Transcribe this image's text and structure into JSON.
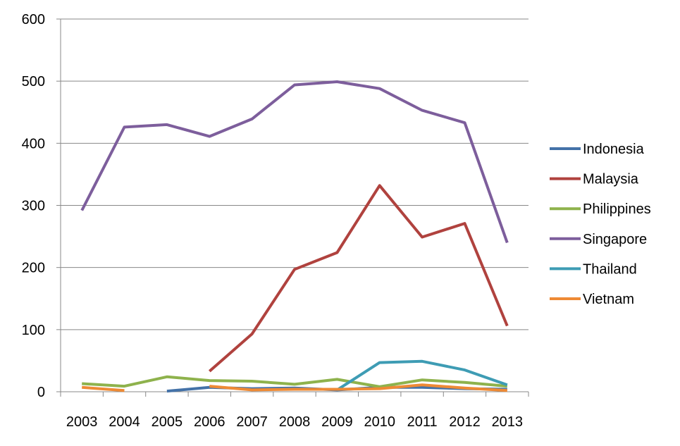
{
  "chart_data": {
    "type": "line",
    "title": "",
    "xlabel": "",
    "ylabel": "",
    "categories": [
      "2003",
      "2004",
      "2005",
      "2006",
      "2007",
      "2008",
      "2009",
      "2010",
      "2011",
      "2012",
      "2013"
    ],
    "ylim": [
      0,
      600
    ],
    "yticks": [
      "0",
      "100",
      "200",
      "300",
      "400",
      "500",
      "600"
    ],
    "grid": "horizontal",
    "legend_position": "right",
    "series": [
      {
        "name": "Indonesia",
        "color": "#4472a8",
        "values": [
          null,
          null,
          1,
          7,
          5,
          6,
          3,
          7,
          7,
          5,
          4
        ]
      },
      {
        "name": "Malaysia",
        "color": "#b0423e",
        "values": [
          null,
          null,
          null,
          33,
          93,
          197,
          224,
          332,
          249,
          271,
          106
        ]
      },
      {
        "name": "Philippines",
        "color": "#8eb24c",
        "values": [
          13,
          9,
          24,
          18,
          17,
          12,
          20,
          8,
          19,
          15,
          9
        ]
      },
      {
        "name": "Singapore",
        "color": "#7d5e9c",
        "values": [
          292,
          426,
          430,
          411,
          439,
          494,
          499,
          488,
          453,
          433,
          240
        ]
      },
      {
        "name": "Thailand",
        "color": "#3e9cb4",
        "values": [
          null,
          null,
          null,
          null,
          null,
          null,
          3,
          47,
          49,
          35,
          11
        ]
      },
      {
        "name": "Vietnam",
        "color": "#ee8a35",
        "values": [
          7,
          2,
          null,
          9,
          3,
          4,
          4,
          5,
          11,
          6,
          2
        ]
      }
    ]
  }
}
